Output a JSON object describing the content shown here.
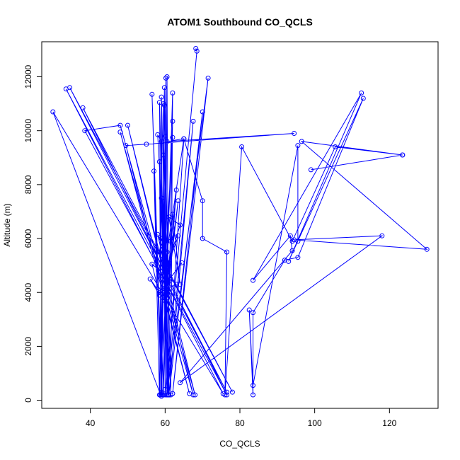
{
  "chart_data": {
    "type": "line",
    "title": "ATOM1 Southbound CO_QCLS",
    "xlabel": "CO_QCLS",
    "ylabel": "Altitude (m)",
    "xlim": [
      27,
      133
    ],
    "ylim": [
      -300,
      13300
    ],
    "xticks": [
      40,
      60,
      80,
      100,
      120
    ],
    "yticks": [
      0,
      2000,
      4000,
      6000,
      8000,
      10000,
      12000
    ],
    "grid": false,
    "marker": "open-circle",
    "color": "#0000ff",
    "series": [
      {
        "points": [
          [
            68.2,
            13050
          ],
          [
            68.5,
            12950
          ],
          [
            60.0,
            200
          ],
          [
            60.2,
            11950
          ],
          [
            59.0,
            300
          ],
          [
            59.8,
            11600
          ],
          [
            60.5,
            200
          ],
          [
            59.5,
            11000
          ],
          [
            60.0,
            400
          ],
          [
            60.5,
            12000
          ],
          [
            61.0,
            200
          ],
          [
            59.0,
            11250
          ],
          [
            59.5,
            200
          ],
          [
            62.0,
            11400
          ],
          [
            61.5,
            200
          ],
          [
            59.8,
            10950
          ],
          [
            60.8,
            200
          ],
          [
            58.5,
            11050
          ],
          [
            59.2,
            200
          ],
          [
            56.5,
            11350
          ],
          [
            59.0,
            250
          ],
          [
            62.0,
            10350
          ],
          [
            60.5,
            200
          ],
          [
            67.5,
            10350
          ],
          [
            61.0,
            200
          ],
          [
            70.0,
            10700
          ],
          [
            62.0,
            250
          ],
          [
            71.5,
            11950
          ],
          [
            60.5,
            200
          ],
          [
            65.0,
            9700
          ],
          [
            60.5,
            5500
          ],
          [
            62.0,
            9750
          ],
          [
            60.0,
            4900
          ],
          [
            58.0,
            9850
          ],
          [
            59.0,
            9600
          ],
          [
            58.8,
            200
          ],
          [
            60.0,
            9800
          ],
          [
            60.5,
            200
          ],
          [
            59.5,
            9100
          ],
          [
            61.0,
            200
          ],
          [
            58.5,
            8850
          ],
          [
            59.0,
            150
          ],
          [
            57.0,
            8500
          ],
          [
            58.5,
            200
          ],
          [
            59.0,
            7500
          ],
          [
            61.0,
            4000
          ],
          [
            63.0,
            7800
          ],
          [
            60.0,
            3700
          ],
          [
            63.5,
            7400
          ],
          [
            60.5,
            3800
          ],
          [
            62.0,
            6900
          ],
          [
            64.0,
            4300
          ],
          [
            61.0,
            6800
          ],
          [
            64.0,
            6500
          ],
          [
            59.5,
            4500
          ],
          [
            63.5,
            6100
          ],
          [
            60.2,
            4800
          ],
          [
            58.0,
            6150
          ],
          [
            61.0,
            5100
          ],
          [
            59.0,
            6000
          ],
          [
            58.5,
            5500
          ],
          [
            60.0,
            5900
          ],
          [
            61.5,
            5900
          ],
          [
            61.2,
            4500
          ],
          [
            64.5,
            5100
          ],
          [
            58.5,
            4000
          ],
          [
            63.0,
            4300
          ],
          [
            56.5,
            5050
          ],
          [
            58.5,
            3900
          ],
          [
            56.0,
            4500
          ],
          [
            59.5,
            3800
          ],
          [
            58.8,
            200
          ],
          [
            30.0,
            10700
          ],
          [
            75.5,
            250
          ],
          [
            33.5,
            11550
          ],
          [
            76.5,
            300
          ],
          [
            34.5,
            11600
          ],
          [
            78.0,
            300
          ],
          [
            38.0,
            10850
          ],
          [
            76.5,
            200
          ],
          [
            38.5,
            10000
          ],
          [
            48.0,
            10200
          ],
          [
            68.0,
            200
          ],
          [
            50.0,
            10200
          ],
          [
            67.5,
            200
          ],
          [
            48.0,
            9950
          ],
          [
            66.5,
            250
          ],
          [
            49.5,
            9450
          ],
          [
            55.0,
            9500
          ],
          [
            94.5,
            9900
          ],
          [
            60.5,
            9600
          ],
          [
            65.0,
            9700
          ],
          [
            70.0,
            7400
          ],
          [
            70.0,
            6000
          ],
          [
            76.5,
            5500
          ],
          [
            76.0,
            200
          ],
          [
            80.5,
            9400
          ],
          [
            94.0,
            5900
          ],
          [
            105.5,
            9400
          ],
          [
            123.5,
            9100
          ],
          [
            99.0,
            8550
          ],
          [
            123.5,
            9100
          ],
          [
            96.5,
            9600
          ],
          [
            130.0,
            5600
          ],
          [
            94.5,
            5950
          ],
          [
            118.0,
            6100
          ],
          [
            64.0,
            650
          ],
          [
            94.0,
            5550
          ],
          [
            93.5,
            6100
          ],
          [
            83.5,
            4450
          ],
          [
            112.5,
            11400
          ],
          [
            93.0,
            5150
          ],
          [
            113.0,
            11200
          ],
          [
            95.5,
            5300
          ],
          [
            92.0,
            5200
          ],
          [
            83.5,
            3250
          ],
          [
            83.5,
            200
          ],
          [
            82.5,
            3350
          ],
          [
            83.5,
            550
          ],
          [
            95.5,
            9450
          ],
          [
            95.5,
            5900
          ]
        ]
      }
    ]
  }
}
